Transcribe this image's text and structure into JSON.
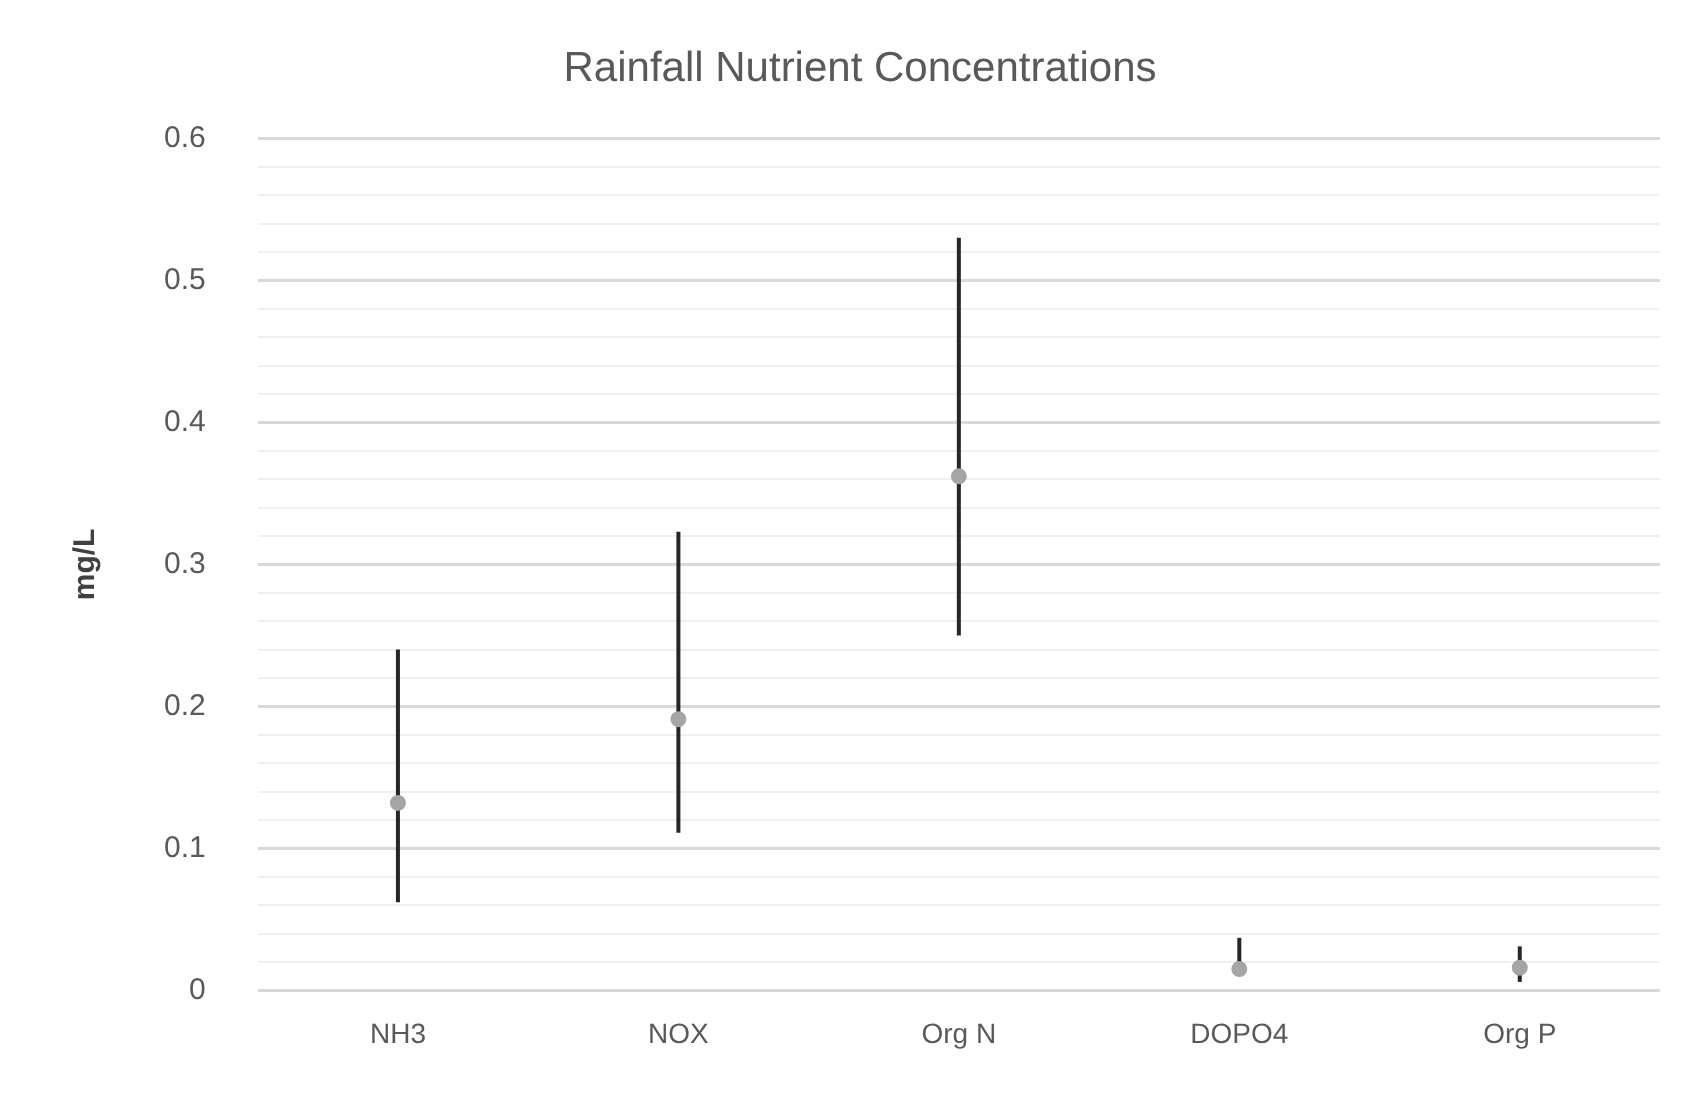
{
  "chart_data": {
    "type": "scatter",
    "title": "Rainfall Nutrient Concentrations",
    "ylabel": "mg/L",
    "categories": [
      "NH3",
      "NOX",
      "Org N",
      "DOPO4",
      "Org P"
    ],
    "values": [
      0.132,
      0.191,
      0.362,
      0.015,
      0.016
    ],
    "errors": [
      [
        0.062,
        0.24
      ],
      [
        0.111,
        0.323
      ],
      [
        0.25,
        0.53
      ],
      [
        0.015,
        0.037
      ],
      [
        0.006,
        0.031
      ]
    ],
    "color": "#a5a5a5",
    "marker": "circle",
    "grid": "y",
    "legend": false,
    "ylim": [
      0,
      0.6
    ],
    "yticks": [
      0,
      {
        "value": 0.02,
        "label": null
      },
      {
        "value": 0.04,
        "label": null
      },
      {
        "value": 0.06,
        "label": null
      },
      {
        "value": 0.08,
        "label": null
      },
      0.1,
      {
        "value": 0.12,
        "label": null
      },
      {
        "value": 0.14,
        "label": null
      },
      {
        "value": 0.16,
        "label": null
      },
      {
        "value": 0.18,
        "label": null
      },
      0.2,
      {
        "value": 0.22,
        "label": null
      },
      {
        "value": 0.24,
        "label": null
      },
      {
        "value": 0.26,
        "label": null
      },
      {
        "value": 0.28,
        "label": null
      },
      0.3,
      {
        "value": 0.32,
        "label": null
      },
      {
        "value": 0.34,
        "label": null
      },
      {
        "value": 0.36,
        "label": null
      },
      {
        "value": 0.38,
        "label": null
      },
      0.4,
      {
        "value": 0.42,
        "label": null
      },
      {
        "value": 0.44,
        "label": null
      },
      {
        "value": 0.46,
        "label": null
      },
      {
        "value": 0.48,
        "label": null
      },
      0.5,
      {
        "value": 0.52,
        "label": null
      },
      {
        "value": 0.54,
        "label": null
      },
      {
        "value": 0.56,
        "label": null
      },
      {
        "value": 0.58,
        "label": null
      },
      0.6
    ]
  }
}
